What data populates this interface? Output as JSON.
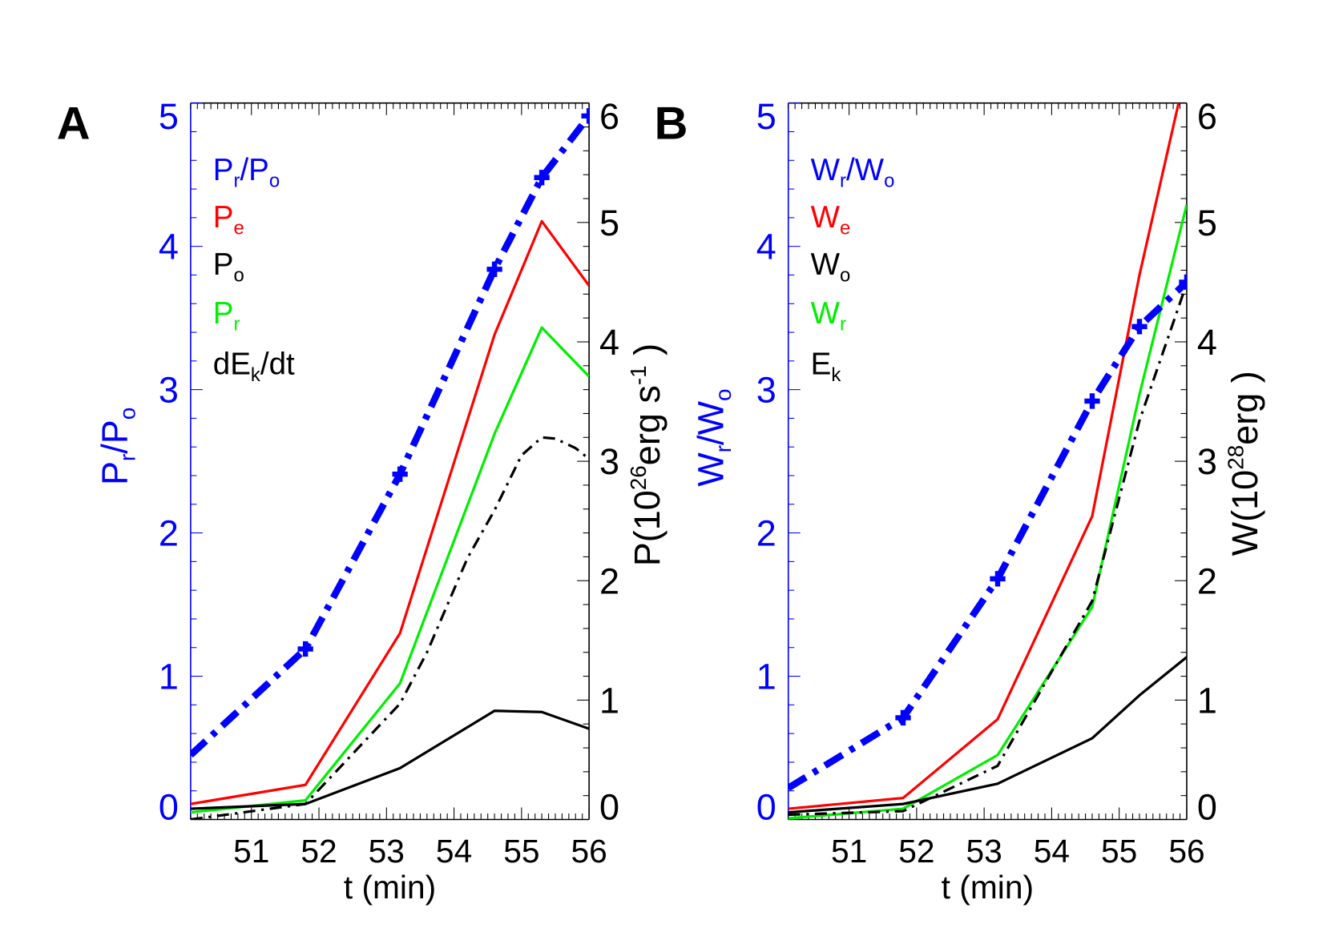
{
  "chart_data": [
    {
      "type": "line",
      "panel_label": "A",
      "xlabel": "t (min)",
      "xlim": [
        50.1,
        56
      ],
      "xticks": [
        51,
        52,
        53,
        54,
        55,
        56
      ],
      "ylabel_left": {
        "parts": [
          {
            "t": "P"
          },
          {
            "t": "r",
            "sub": true
          },
          {
            "t": "/P"
          },
          {
            "t": "o",
            "sub": true
          }
        ]
      },
      "ylabel_right": {
        "parts": [
          {
            "t": "P(10"
          },
          {
            "t": "26",
            "sup": true
          },
          {
            "t": "erg s"
          },
          {
            "t": "-1",
            "sup": true
          },
          {
            "t": " )"
          }
        ]
      },
      "ylim_left": [
        0,
        5
      ],
      "yticks_left": [
        0,
        1,
        2,
        3,
        4,
        5
      ],
      "ylim_right": [
        0,
        6
      ],
      "yticks_right": [
        0,
        1,
        2,
        3,
        4,
        5,
        6
      ],
      "grid": false,
      "legend_position": "top-left",
      "series": [
        {
          "name": "Pr/Po",
          "legend": [
            {
              "t": "P"
            },
            {
              "t": "r",
              "sub": true
            },
            {
              "t": "/P"
            },
            {
              "t": "o",
              "sub": true
            }
          ],
          "axis": "left",
          "color": "#0000ff",
          "style": "thick-dashdot-plus",
          "x": [
            50.1,
            51.8,
            53.2,
            54.6,
            55.3,
            56
          ],
          "y": [
            0.45,
            1.19,
            2.41,
            3.84,
            4.48,
            4.91
          ]
        },
        {
          "name": "Pe",
          "legend": [
            {
              "t": "P"
            },
            {
              "t": "e",
              "sub": true
            }
          ],
          "axis": "right",
          "color": "#ff0000",
          "style": "solid",
          "x": [
            50.1,
            51.8,
            53.2,
            54.6,
            55.3,
            56
          ],
          "y": [
            0.13,
            0.29,
            1.56,
            4.06,
            5.01,
            4.47
          ]
        },
        {
          "name": "Po",
          "legend": [
            {
              "t": "P"
            },
            {
              "t": "o",
              "sub": true
            }
          ],
          "axis": "right",
          "color": "#000000",
          "style": "solid",
          "x": [
            50.1,
            51.8,
            53.2,
            54.6,
            55.3,
            56
          ],
          "y": [
            0.09,
            0.13,
            0.43,
            0.91,
            0.9,
            0.76
          ]
        },
        {
          "name": "Pr",
          "legend": [
            {
              "t": "P"
            },
            {
              "t": "r",
              "sub": true
            }
          ],
          "axis": "right",
          "color": "#00ee00",
          "style": "solid",
          "x": [
            50.1,
            51.8,
            53.2,
            54.6,
            55.3,
            56
          ],
          "y": [
            0.06,
            0.16,
            1.14,
            3.23,
            4.12,
            3.71
          ]
        },
        {
          "name": "dEk/dt",
          "legend": [
            {
              "t": "dE"
            },
            {
              "t": "k",
              "sub": true
            },
            {
              "t": "/dt"
            }
          ],
          "axis": "right",
          "color": "#000000",
          "style": "dashdot",
          "x": [
            50.1,
            51.8,
            53.2,
            53.6,
            54.2,
            54.6,
            55.0,
            55.3,
            55.5,
            55.8,
            56
          ],
          "y": [
            0.0,
            0.13,
            0.97,
            1.4,
            2.19,
            2.59,
            3.05,
            3.2,
            3.19,
            3.11,
            3.02
          ]
        }
      ]
    },
    {
      "type": "line",
      "panel_label": "B",
      "xlabel": "t (min)",
      "xlim": [
        50.1,
        56
      ],
      "xticks": [
        51,
        52,
        53,
        54,
        55,
        56
      ],
      "ylabel_left": {
        "parts": [
          {
            "t": "W"
          },
          {
            "t": "r",
            "sub": true
          },
          {
            "t": "/W"
          },
          {
            "t": "o",
            "sub": true
          }
        ]
      },
      "ylabel_right": {
        "parts": [
          {
            "t": "W(10"
          },
          {
            "t": "28",
            "sup": true
          },
          {
            "t": "erg )"
          }
        ]
      },
      "ylim_left": [
        0,
        5
      ],
      "yticks_left": [
        0,
        1,
        2,
        3,
        4,
        5
      ],
      "ylim_right": [
        0,
        6
      ],
      "yticks_right": [
        0,
        1,
        2,
        3,
        4,
        5,
        6
      ],
      "grid": false,
      "legend_position": "top-left",
      "series": [
        {
          "name": "Wr/Wo",
          "legend": [
            {
              "t": "W"
            },
            {
              "t": "r",
              "sub": true
            },
            {
              "t": "/W"
            },
            {
              "t": "o",
              "sub": true
            }
          ],
          "axis": "left",
          "color": "#0000ff",
          "style": "thick-dashdot-plus",
          "x": [
            50.1,
            51.8,
            53.2,
            54.6,
            55.3,
            56
          ],
          "y": [
            0.22,
            0.71,
            1.68,
            2.92,
            3.44,
            3.75
          ]
        },
        {
          "name": "We",
          "legend": [
            {
              "t": "W"
            },
            {
              "t": "e",
              "sub": true
            }
          ],
          "axis": "right",
          "color": "#ff0000",
          "style": "solid",
          "x": [
            50.1,
            51.8,
            53.2,
            54.6,
            55.3,
            56
          ],
          "y": [
            0.09,
            0.18,
            0.84,
            2.54,
            4.56,
            6.3
          ]
        },
        {
          "name": "Wo",
          "legend": [
            {
              "t": "W"
            },
            {
              "t": "o",
              "sub": true
            }
          ],
          "axis": "right",
          "color": "#000000",
          "style": "solid",
          "x": [
            50.1,
            51.8,
            53.2,
            54.6,
            55.3,
            56
          ],
          "y": [
            0.06,
            0.13,
            0.3,
            0.68,
            1.04,
            1.36
          ]
        },
        {
          "name": "Wr",
          "legend": [
            {
              "t": "W"
            },
            {
              "t": "r",
              "sub": true
            }
          ],
          "axis": "right",
          "color": "#00ee00",
          "style": "solid",
          "x": [
            50.1,
            51.8,
            53.2,
            54.6,
            55.3,
            56
          ],
          "y": [
            0.01,
            0.09,
            0.54,
            1.78,
            3.56,
            5.15
          ]
        },
        {
          "name": "Ek",
          "legend": [
            {
              "t": "E"
            },
            {
              "t": "k",
              "sub": true
            }
          ],
          "axis": "right",
          "color": "#000000",
          "style": "dashdot",
          "x": [
            50.1,
            51.8,
            53.2,
            54.6,
            55.3,
            56
          ],
          "y": [
            0.04,
            0.07,
            0.45,
            1.83,
            3.34,
            4.49
          ]
        }
      ]
    }
  ]
}
